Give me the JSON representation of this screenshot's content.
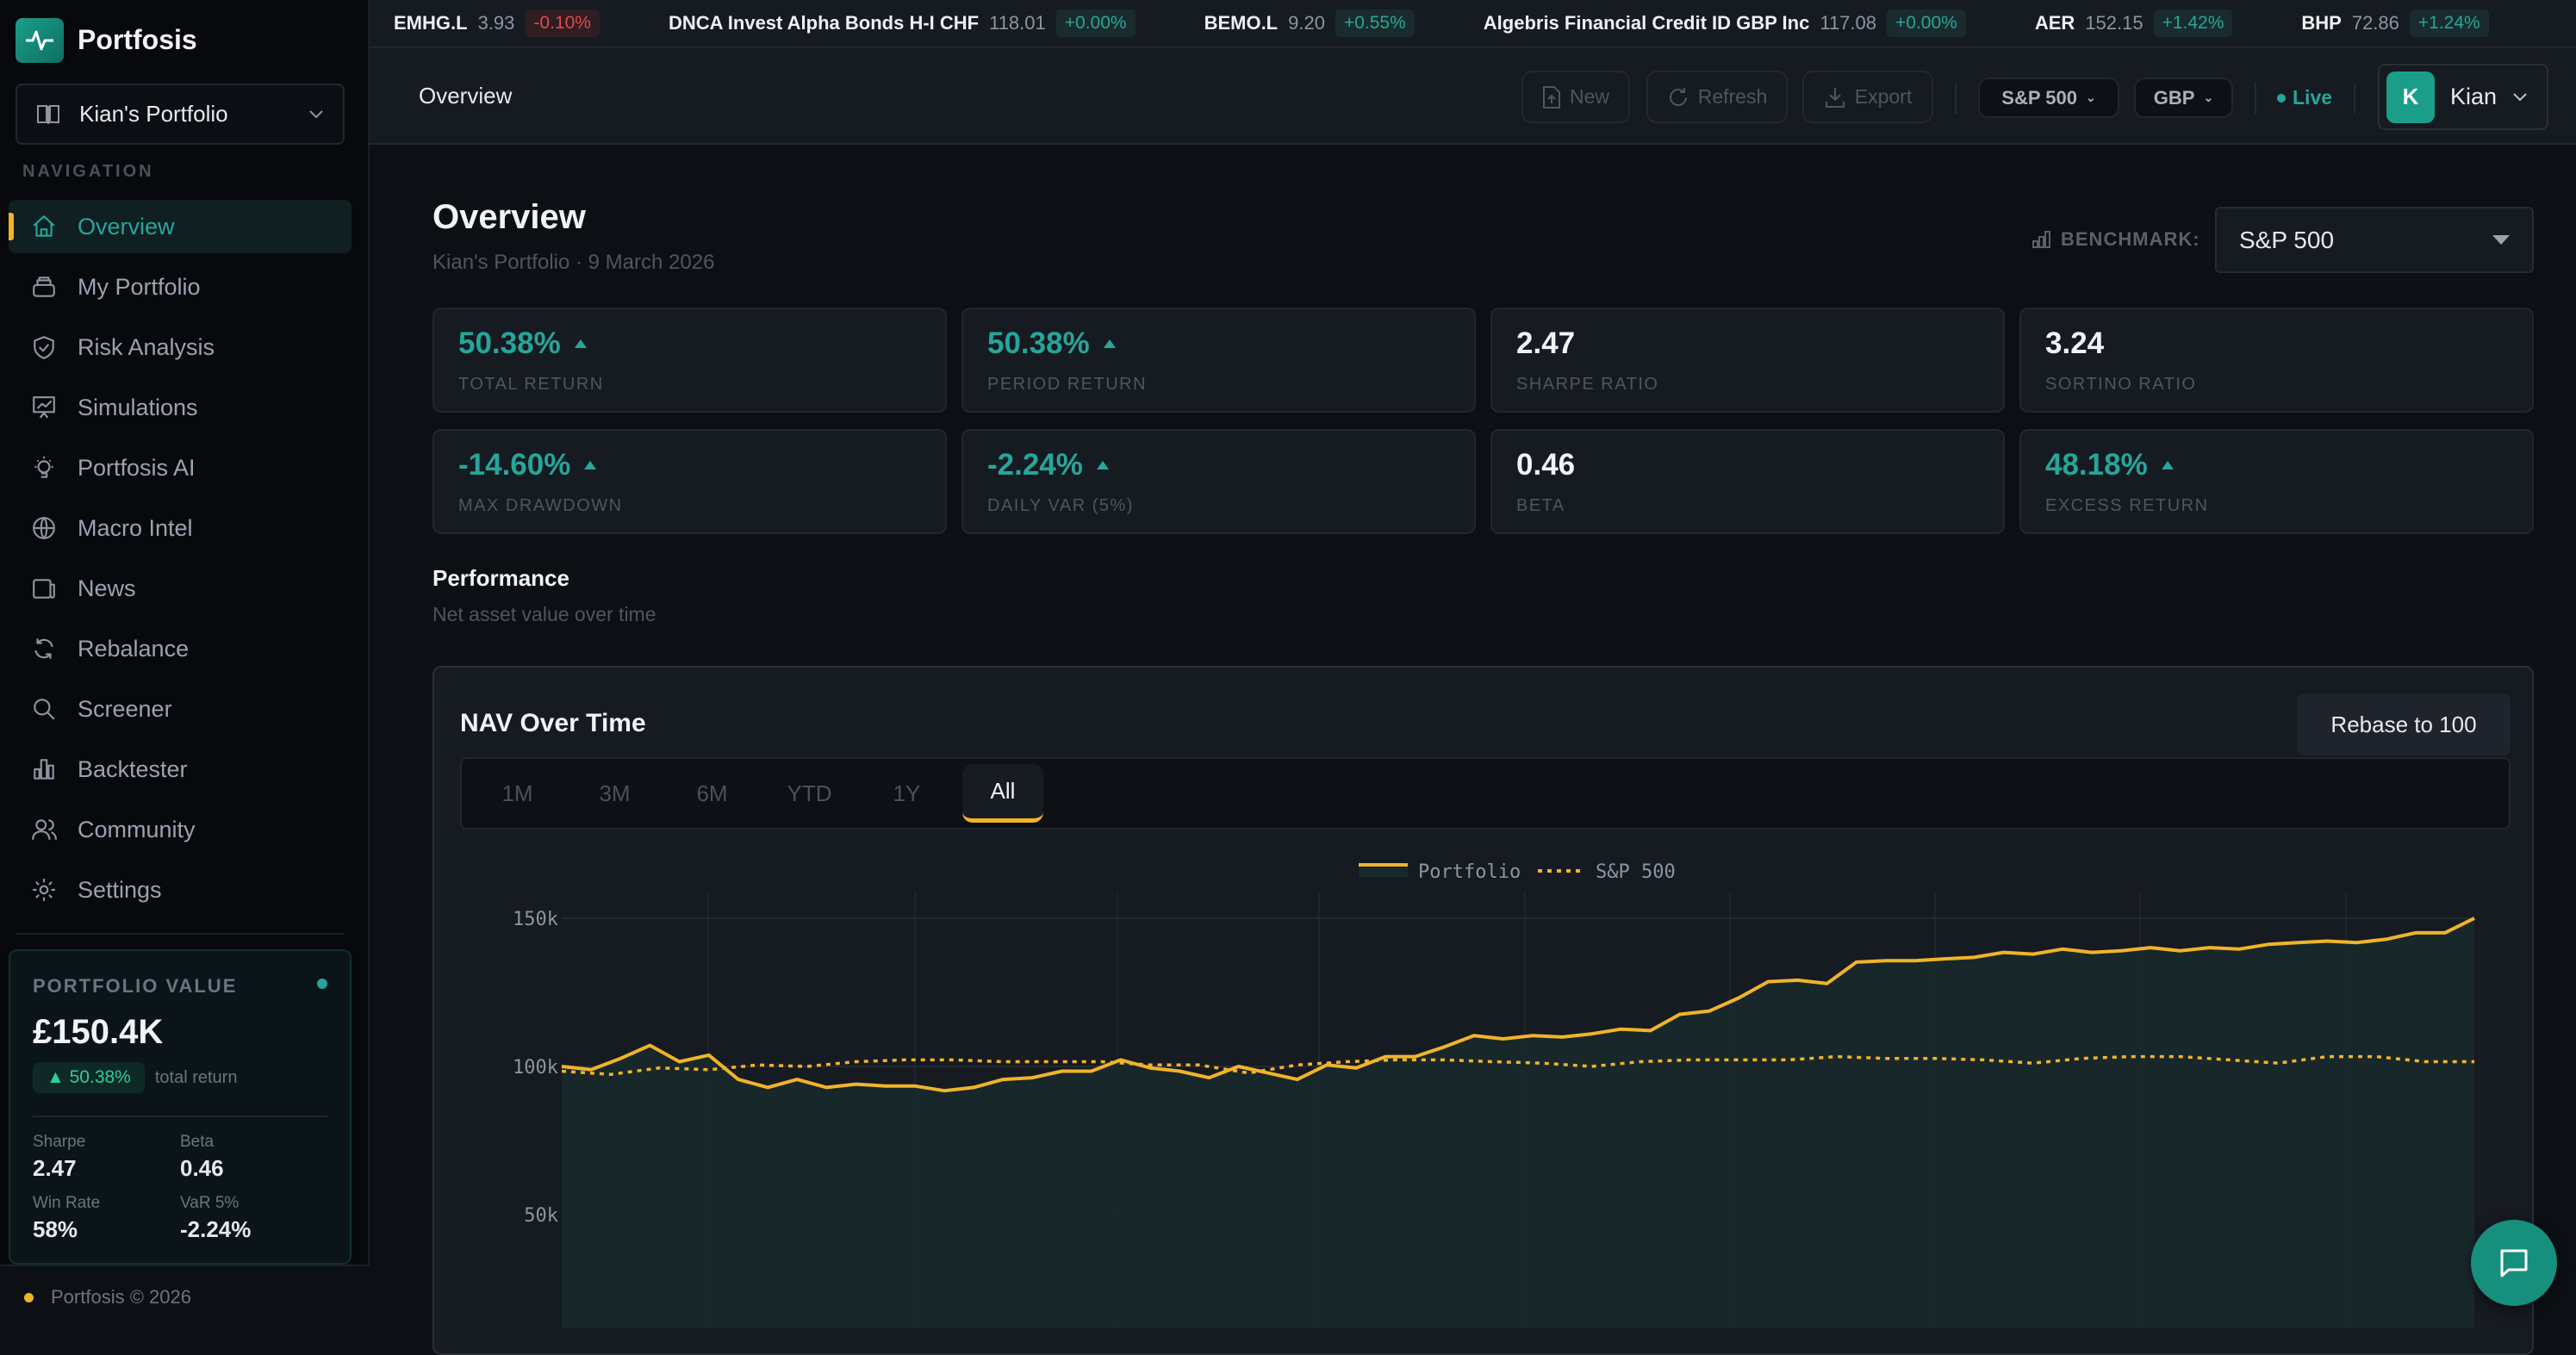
{
  "app": {
    "name": "Portfosis",
    "portfolio_selector": "Kian's Portfolio",
    "nav_label": "NAVIGATION",
    "footer": "Portfosis © 2026"
  },
  "sidebar": {
    "items": [
      {
        "label": "Overview",
        "icon": "home-icon",
        "active": true
      },
      {
        "label": "My Portfolio",
        "icon": "layers-icon"
      },
      {
        "label": "Risk Analysis",
        "icon": "shield-check-icon"
      },
      {
        "label": "Simulations",
        "icon": "presentation-chart-icon"
      },
      {
        "label": "Portfosis AI",
        "icon": "lightbulb-icon"
      },
      {
        "label": "Macro Intel",
        "icon": "globe-icon"
      },
      {
        "label": "News",
        "icon": "newspaper-icon"
      },
      {
        "label": "Rebalance",
        "icon": "refresh-icon"
      },
      {
        "label": "Screener",
        "icon": "search-icon"
      },
      {
        "label": "Backtester",
        "icon": "bar-chart-icon"
      },
      {
        "label": "Community",
        "icon": "users-icon"
      },
      {
        "label": "Settings",
        "icon": "gear-icon"
      }
    ]
  },
  "portfolio_card": {
    "title": "PORTFOLIO VALUE",
    "value": "£150.4K",
    "return": "50.38%",
    "return_label": "total return",
    "stats": [
      {
        "k": "Sharpe",
        "v": "2.47"
      },
      {
        "k": "Beta",
        "v": "0.46"
      },
      {
        "k": "Win Rate",
        "v": "58%"
      },
      {
        "k": "VaR 5%",
        "v": "-2.24%"
      }
    ]
  },
  "ticker": [
    {
      "symbol": "EMHG.L",
      "price": "3.93",
      "change": "-0.10%",
      "dir": "down"
    },
    {
      "symbol": "DNCA Invest Alpha Bonds H-I CHF",
      "price": "118.01",
      "change": "+0.00%",
      "dir": "up"
    },
    {
      "symbol": "BEMO.L",
      "price": "9.20",
      "change": "+0.55%",
      "dir": "up"
    },
    {
      "symbol": "Algebris Financial Credit ID GBP Inc",
      "price": "117.08",
      "change": "+0.00%",
      "dir": "up"
    },
    {
      "symbol": "AER",
      "price": "152.15",
      "change": "+1.42%",
      "dir": "up"
    },
    {
      "symbol": "BHP",
      "price": "72.86",
      "change": "+1.24%",
      "dir": "up"
    }
  ],
  "header": {
    "title": "Overview",
    "new": "New",
    "refresh": "Refresh",
    "export": "Export",
    "benchmark": "S&P 500",
    "currency": "GBP",
    "live": "Live",
    "user": "Kian",
    "user_initial": "K"
  },
  "page": {
    "title": "Overview",
    "subtitle": "Kian's Portfolio · 9 March 2026",
    "benchmark_label": "BENCHMARK:",
    "benchmark_value": "S&P 500"
  },
  "metrics": [
    {
      "value": "50.38%",
      "label": "TOTAL RETURN",
      "tone": "pos",
      "arrow": true
    },
    {
      "value": "50.38%",
      "label": "PERIOD RETURN",
      "tone": "pos",
      "arrow": true
    },
    {
      "value": "2.47",
      "label": "SHARPE RATIO",
      "tone": "neu"
    },
    {
      "value": "3.24",
      "label": "SORTINO RATIO",
      "tone": "neu"
    },
    {
      "value": "-14.60%",
      "label": "MAX DRAWDOWN",
      "tone": "pos",
      "arrow": true
    },
    {
      "value": "-2.24%",
      "label": "DAILY VAR (5%)",
      "tone": "pos",
      "arrow": true
    },
    {
      "value": "0.46",
      "label": "BETA",
      "tone": "neu"
    },
    {
      "value": "48.18%",
      "label": "EXCESS RETURN",
      "tone": "pos",
      "arrow": true
    }
  ],
  "performance": {
    "title": "Performance",
    "subtitle": "Net asset value over time",
    "card_title": "NAV Over Time",
    "rebase": "Rebase to 100",
    "ranges": [
      "1M",
      "3M",
      "6M",
      "YTD",
      "1Y",
      "All"
    ],
    "active_range": "All"
  },
  "colors": {
    "accent": "#26a69a",
    "line": "#f0b429",
    "negative": "#e5484d"
  },
  "chart_data": {
    "type": "area",
    "legend": "top-center",
    "grid": true,
    "ylim": [
      0,
      160000
    ],
    "yticks": [
      {
        "v": 50000,
        "label": "50k"
      },
      {
        "v": 100000,
        "label": "100k"
      },
      {
        "v": 150000,
        "label": "150k"
      }
    ],
    "series": [
      {
        "name": "Portfolio",
        "style": "solid",
        "fill": true,
        "values": [
          100.0,
          98.9,
          102.7,
          107.1,
          101.6,
          103.8,
          95.6,
          92.9,
          95.6,
          92.9,
          94.0,
          93.4,
          93.4,
          91.8,
          92.9,
          95.6,
          96.2,
          98.4,
          98.4,
          102.2,
          99.5,
          98.4,
          96.2,
          100.0,
          97.8,
          95.6,
          100.5,
          99.5,
          103.3,
          103.3,
          106.6,
          110.4,
          109.3,
          110.4,
          109.9,
          111.0,
          112.6,
          112.1,
          117.6,
          118.7,
          123.1,
          128.6,
          129.1,
          128.0,
          135.2,
          135.7,
          135.7,
          136.3,
          136.8,
          138.5,
          137.9,
          139.6,
          138.5,
          139.0,
          140.1,
          139.0,
          140.1,
          139.6,
          141.2,
          141.8,
          142.3,
          141.8,
          142.9,
          145.1,
          145.1,
          150.0
        ]
      },
      {
        "name": "S&P 500",
        "style": "dotted",
        "fill": false,
        "values": [
          98.4,
          97.3,
          99.5,
          98.9,
          100.5,
          100.0,
          101.6,
          102.2,
          102.2,
          101.6,
          101.6,
          101.6,
          100.5,
          100.5,
          97.8,
          100.5,
          101.6,
          102.2,
          102.2,
          101.6,
          101.1,
          100.0,
          101.6,
          102.2,
          102.2,
          102.2,
          103.3,
          102.7,
          102.7,
          102.2,
          101.1,
          102.7,
          103.3,
          103.3,
          102.2,
          101.1,
          103.3,
          103.3,
          101.6,
          101.6
        ]
      }
    ]
  }
}
